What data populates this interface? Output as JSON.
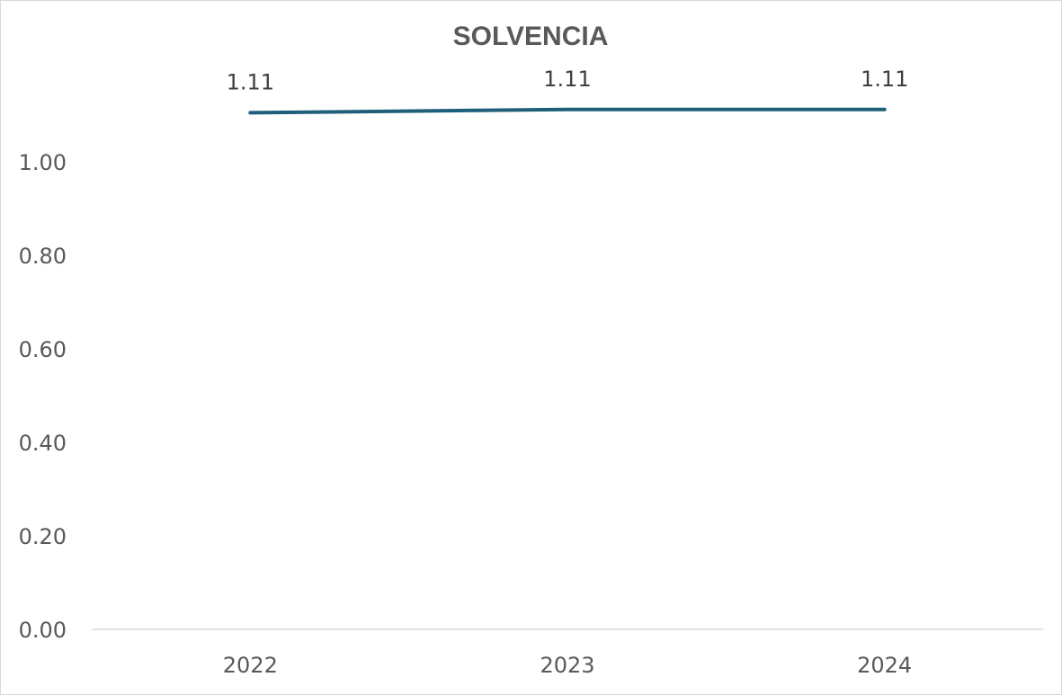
{
  "chart_data": {
    "type": "line",
    "title": "SOLVENCIA",
    "categories": [
      "2022",
      "2023",
      "2024"
    ],
    "series": [
      {
        "values": [
          1.105,
          1.112,
          1.112
        ],
        "labels": [
          "1.11",
          "1.11",
          "1.11"
        ]
      }
    ],
    "ylim": [
      0,
      1.0
    ],
    "yticks": [
      "0.00",
      "0.20",
      "0.40",
      "0.60",
      "0.80",
      "1.00"
    ],
    "grid": false,
    "legend": "none",
    "colors": {
      "line": "#1f5f7a",
      "axis": "#d9d9d9",
      "text": "#595959"
    }
  }
}
